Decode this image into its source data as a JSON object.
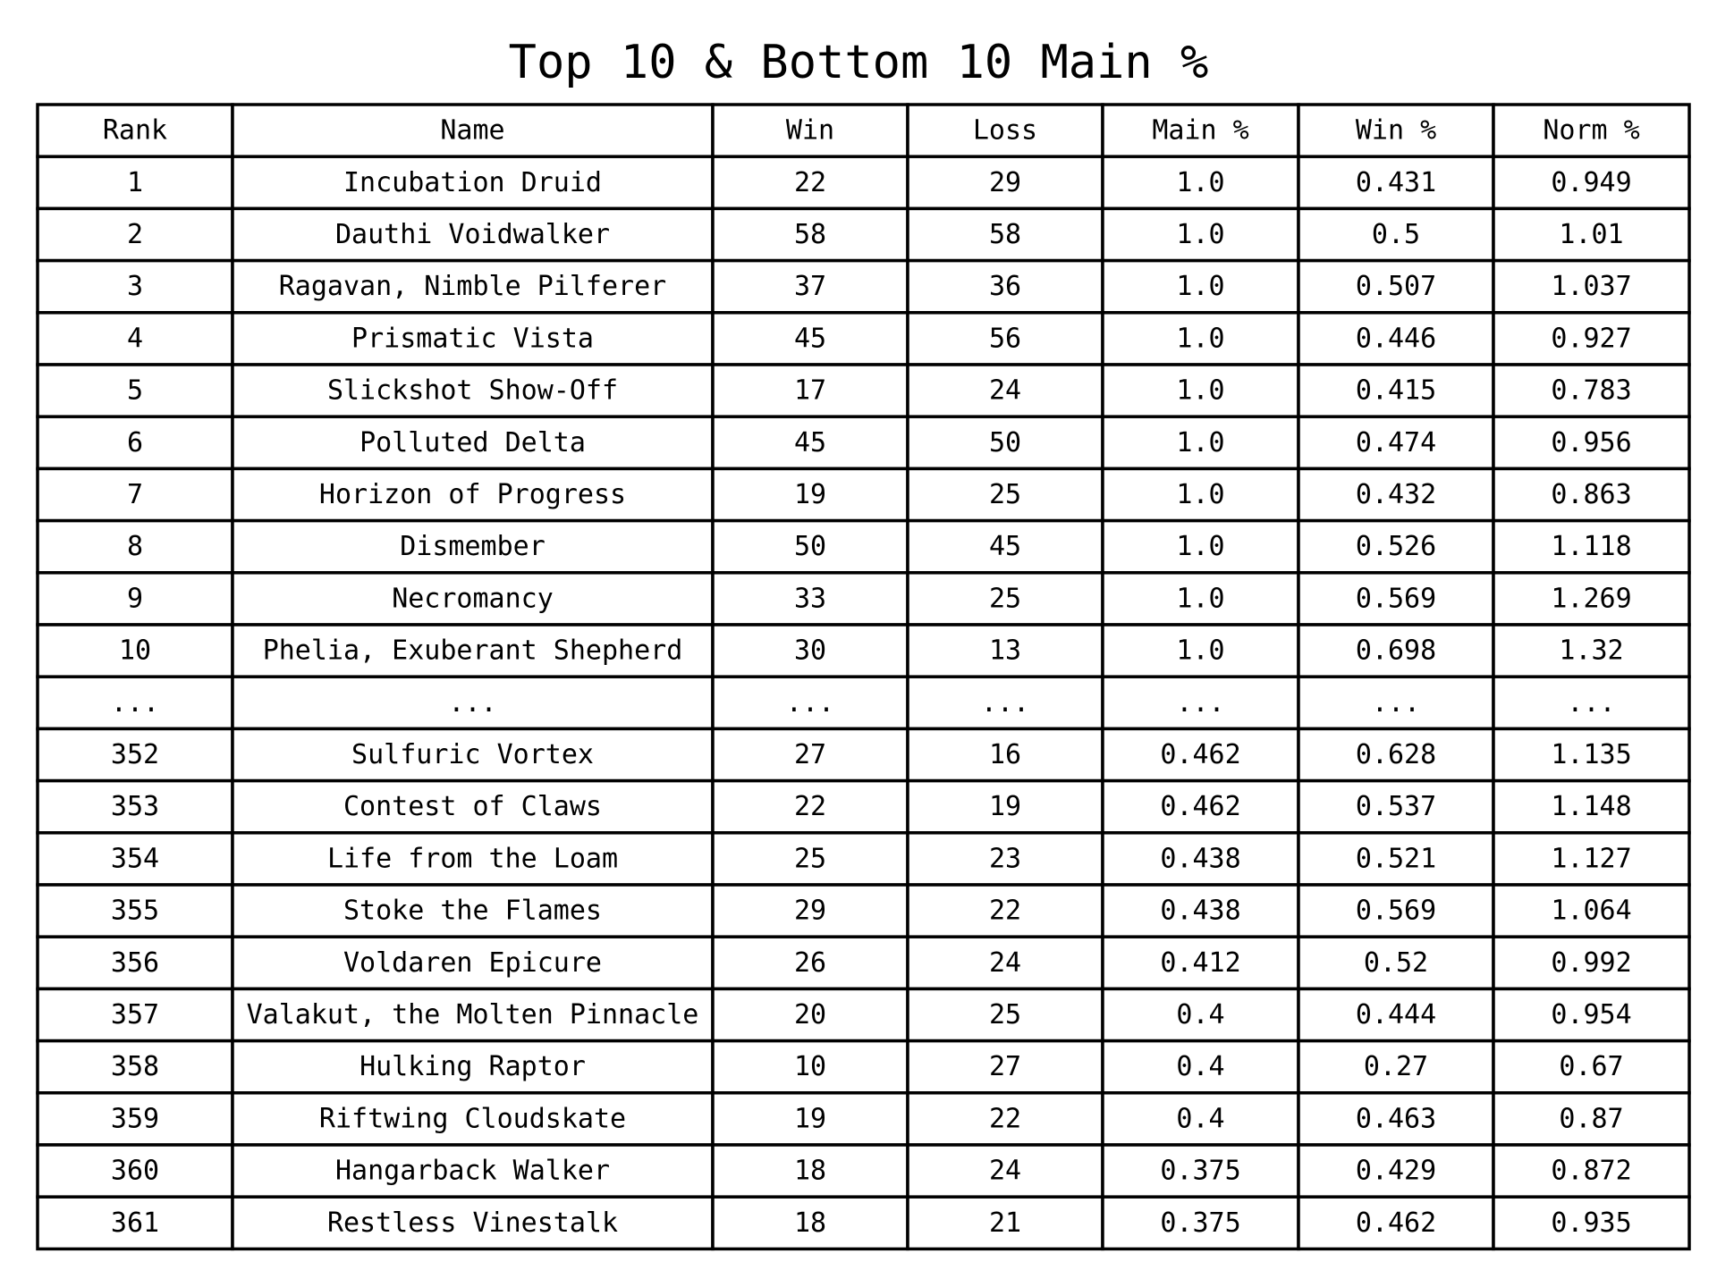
{
  "chart_data": {
    "type": "table",
    "title": "Top 10 & Bottom 10 Main %",
    "columns": [
      "Rank",
      "Name",
      "Win",
      "Loss",
      "Main %",
      "Win %",
      "Norm %"
    ],
    "rows": [
      [
        "1",
        "Incubation Druid",
        "22",
        "29",
        "1.0",
        "0.431",
        "0.949"
      ],
      [
        "2",
        "Dauthi Voidwalker",
        "58",
        "58",
        "1.0",
        "0.5",
        "1.01"
      ],
      [
        "3",
        "Ragavan, Nimble Pilferer",
        "37",
        "36",
        "1.0",
        "0.507",
        "1.037"
      ],
      [
        "4",
        "Prismatic Vista",
        "45",
        "56",
        "1.0",
        "0.446",
        "0.927"
      ],
      [
        "5",
        "Slickshot Show-Off",
        "17",
        "24",
        "1.0",
        "0.415",
        "0.783"
      ],
      [
        "6",
        "Polluted Delta",
        "45",
        "50",
        "1.0",
        "0.474",
        "0.956"
      ],
      [
        "7",
        "Horizon of Progress",
        "19",
        "25",
        "1.0",
        "0.432",
        "0.863"
      ],
      [
        "8",
        "Dismember",
        "50",
        "45",
        "1.0",
        "0.526",
        "1.118"
      ],
      [
        "9",
        "Necromancy",
        "33",
        "25",
        "1.0",
        "0.569",
        "1.269"
      ],
      [
        "10",
        "Phelia, Exuberant Shepherd",
        "30",
        "13",
        "1.0",
        "0.698",
        "1.32"
      ],
      [
        "...",
        "...",
        "...",
        "...",
        "...",
        "...",
        "..."
      ],
      [
        "352",
        "Sulfuric Vortex",
        "27",
        "16",
        "0.462",
        "0.628",
        "1.135"
      ],
      [
        "353",
        "Contest of Claws",
        "22",
        "19",
        "0.462",
        "0.537",
        "1.148"
      ],
      [
        "354",
        "Life from the Loam",
        "25",
        "23",
        "0.438",
        "0.521",
        "1.127"
      ],
      [
        "355",
        "Stoke the Flames",
        "29",
        "22",
        "0.438",
        "0.569",
        "1.064"
      ],
      [
        "356",
        "Voldaren Epicure",
        "26",
        "24",
        "0.412",
        "0.52",
        "0.992"
      ],
      [
        "357",
        "Valakut, the Molten Pinnacle",
        "20",
        "25",
        "0.4",
        "0.444",
        "0.954"
      ],
      [
        "358",
        "Hulking Raptor",
        "10",
        "27",
        "0.4",
        "0.27",
        "0.67"
      ],
      [
        "359",
        "Riftwing Cloudskate",
        "19",
        "22",
        "0.4",
        "0.463",
        "0.87"
      ],
      [
        "360",
        "Hangarback Walker",
        "18",
        "24",
        "0.375",
        "0.429",
        "0.872"
      ],
      [
        "361",
        "Restless Vinestalk",
        "18",
        "21",
        "0.375",
        "0.462",
        "0.935"
      ]
    ]
  }
}
